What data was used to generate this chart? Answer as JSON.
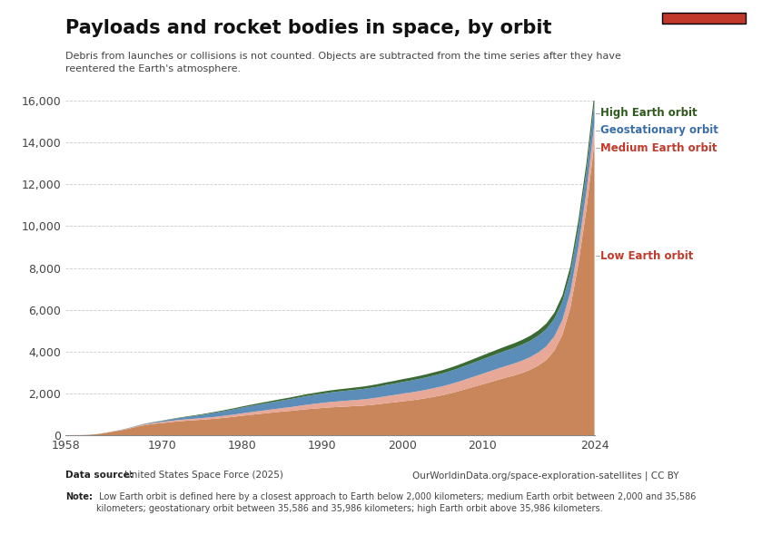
{
  "title": "Payloads and rocket bodies in space, by orbit",
  "subtitle": "Debris from launches or collisions is not counted. Objects are subtracted from the time series after they have\nreentered the Earth's atmosphere.",
  "datasource_bold": "Data source:",
  "datasource_normal": " United States Space Force (2025)",
  "url": "OurWorldinData.org/space-exploration-satellites | CC BY",
  "note_bold": "Note:",
  "note_normal": " Low Earth orbit is defined here by a closest approach to Earth below 2,000 kilometers; medium Earth orbit between 2,000 and 35,586\nkilometers; geostationary orbit between 35,586 and 35,986 kilometers; high Earth orbit above 35,986 kilometers.",
  "years": [
    1958,
    1959,
    1960,
    1961,
    1962,
    1963,
    1964,
    1965,
    1966,
    1967,
    1968,
    1969,
    1970,
    1971,
    1972,
    1973,
    1974,
    1975,
    1976,
    1977,
    1978,
    1979,
    1980,
    1981,
    1982,
    1983,
    1984,
    1985,
    1986,
    1987,
    1988,
    1989,
    1990,
    1991,
    1992,
    1993,
    1994,
    1995,
    1996,
    1997,
    1998,
    1999,
    2000,
    2001,
    2002,
    2003,
    2004,
    2005,
    2006,
    2007,
    2008,
    2009,
    2010,
    2011,
    2012,
    2013,
    2014,
    2015,
    2016,
    2017,
    2018,
    2019,
    2020,
    2021,
    2022,
    2023,
    2024
  ],
  "low_earth": [
    1,
    2,
    4,
    20,
    50,
    110,
    175,
    240,
    320,
    415,
    490,
    540,
    580,
    620,
    660,
    690,
    715,
    740,
    770,
    800,
    840,
    880,
    930,
    970,
    1010,
    1050,
    1090,
    1130,
    1160,
    1200,
    1240,
    1270,
    1300,
    1330,
    1350,
    1370,
    1390,
    1410,
    1440,
    1480,
    1530,
    1570,
    1620,
    1660,
    1710,
    1770,
    1840,
    1910,
    2000,
    2100,
    2210,
    2320,
    2430,
    2540,
    2650,
    2760,
    2860,
    2980,
    3130,
    3330,
    3600,
    4050,
    4800,
    6100,
    8200,
    10800,
    14000
  ],
  "medium_earth": [
    0,
    0,
    0,
    0,
    3,
    7,
    12,
    18,
    24,
    30,
    36,
    42,
    50,
    60,
    65,
    70,
    74,
    78,
    85,
    92,
    100,
    108,
    116,
    126,
    136,
    146,
    156,
    166,
    180,
    196,
    212,
    228,
    244,
    256,
    268,
    278,
    288,
    298,
    310,
    324,
    338,
    352,
    366,
    380,
    392,
    402,
    414,
    426,
    438,
    452,
    468,
    486,
    504,
    522,
    540,
    556,
    572,
    590,
    608,
    628,
    652,
    680,
    712,
    752,
    800,
    856,
    920
  ],
  "geostationary": [
    0,
    0,
    0,
    0,
    1,
    2,
    4,
    7,
    11,
    16,
    24,
    36,
    50,
    67,
    84,
    104,
    128,
    154,
    180,
    206,
    228,
    250,
    272,
    294,
    312,
    330,
    348,
    366,
    384,
    400,
    416,
    430,
    444,
    456,
    468,
    478,
    488,
    498,
    508,
    520,
    532,
    544,
    556,
    568,
    580,
    592,
    604,
    616,
    630,
    644,
    658,
    674,
    690,
    706,
    720,
    734,
    748,
    764,
    780,
    798,
    818,
    840,
    864,
    892,
    924,
    958,
    996
  ],
  "high_earth": [
    0,
    0,
    0,
    0,
    1,
    1,
    2,
    3,
    5,
    7,
    9,
    11,
    14,
    18,
    22,
    26,
    30,
    34,
    38,
    42,
    46,
    50,
    54,
    58,
    62,
    66,
    70,
    74,
    78,
    82,
    86,
    90,
    94,
    98,
    102,
    106,
    110,
    114,
    118,
    122,
    126,
    130,
    134,
    138,
    142,
    146,
    150,
    154,
    158,
    164,
    170,
    178,
    186,
    194,
    202,
    210,
    218,
    228,
    240,
    254,
    270,
    288,
    310,
    336,
    368,
    404,
    448
  ],
  "low_color": "#C8865A",
  "medium_color": "#E8A898",
  "geo_color": "#5B8DB8",
  "high_color": "#3A6B35",
  "bg_color": "#ffffff",
  "owid_box_color": "#1a3a5c",
  "owid_box_red": "#c0392b",
  "ylim": [
    0,
    16000
  ],
  "yticks": [
    0,
    2000,
    4000,
    6000,
    8000,
    10000,
    12000,
    14000,
    16000
  ],
  "xticks": [
    1958,
    1970,
    1980,
    1990,
    2000,
    2010,
    2024
  ],
  "label_high": "High Earth orbit",
  "label_geo": "Geostationary orbit",
  "label_med": "Medium Earth orbit",
  "label_low": "Low Earth orbit",
  "color_label_high": "#2d5a1b",
  "color_label_geo": "#3a6ea8",
  "color_label_med": "#c0392b",
  "color_label_low": "#c0392b"
}
